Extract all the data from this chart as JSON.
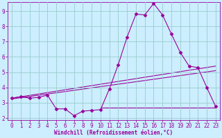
{
  "xlabel": "Windchill (Refroidissement éolien,°C)",
  "background_color": "#cceeff",
  "grid_color": "#99cccc",
  "line_color": "#990099",
  "x_data": [
    0,
    1,
    2,
    3,
    4,
    5,
    6,
    7,
    8,
    9,
    10,
    11,
    12,
    13,
    14,
    15,
    16,
    17,
    18,
    19,
    20,
    21,
    22,
    23
  ],
  "y_main": [
    3.3,
    3.4,
    3.3,
    3.35,
    3.5,
    2.6,
    2.6,
    2.15,
    2.45,
    2.5,
    2.55,
    3.9,
    5.5,
    7.3,
    8.8,
    8.75,
    9.5,
    8.75,
    7.5,
    6.3,
    5.4,
    5.3,
    4.0,
    2.75
  ],
  "ylim_min": 1.85,
  "ylim_max": 9.6,
  "xlim_min": -0.5,
  "xlim_max": 23.5,
  "yticks": [
    2,
    3,
    4,
    5,
    6,
    7,
    8,
    9
  ],
  "xticks": [
    0,
    1,
    2,
    3,
    4,
    5,
    6,
    7,
    8,
    9,
    10,
    11,
    12,
    13,
    14,
    15,
    16,
    17,
    18,
    19,
    20,
    21,
    22,
    23
  ],
  "trend_line1_x": [
    0,
    23
  ],
  "trend_line1_y": [
    3.3,
    5.4
  ],
  "trend_line2_x": [
    0,
    23
  ],
  "trend_line2_y": [
    3.25,
    5.1
  ],
  "flat_line_x": [
    10,
    23
  ],
  "flat_line_y": 2.7,
  "marker": "D",
  "marker_size": 2.5,
  "linewidth": 0.8,
  "tick_fontsize": 5.5,
  "xlabel_fontsize": 5.5
}
